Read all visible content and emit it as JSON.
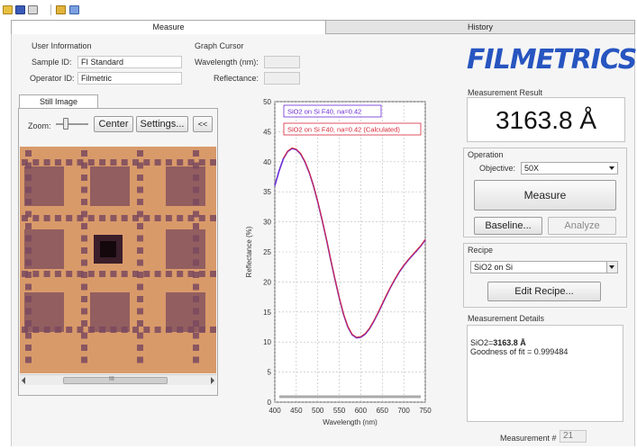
{
  "toolbar": {
    "icons": [
      "open-icon",
      "save-icon",
      "print-icon",
      "settings-icon",
      "help-icon"
    ]
  },
  "tabs": {
    "measure": "Measure",
    "history": "History"
  },
  "user_info": {
    "title": "User Information",
    "sample_label": "Sample ID:",
    "sample_value": "FI Standard",
    "operator_label": "Operator ID:",
    "operator_value": "Filmetric"
  },
  "graph_cursor": {
    "title": "Graph Cursor",
    "wavelength_label": "Wavelength (nm):",
    "wavelength_value": "",
    "reflectance_label": "Reflectance:",
    "reflectance_value": ""
  },
  "still_image": {
    "tab_label": "Still Image",
    "zoom_label": "Zoom:",
    "zoom_level": 0.25,
    "center_label": "Center",
    "settings_label": "Settings...",
    "collapse_label": "<<",
    "scroll_label": "III"
  },
  "brand": {
    "logo_text": "FILMETRICS"
  },
  "measurement_result": {
    "title": "Measurement Result",
    "value": "3163.8 Å"
  },
  "operation": {
    "title": "Operation",
    "objective_label": "Objective:",
    "objective_value": "50X",
    "measure_label": "Measure",
    "baseline_label": "Baseline...",
    "analyze_label": "Analyze"
  },
  "recipe": {
    "title": "Recipe",
    "value": "SiO2 on Si",
    "edit_label": "Edit Recipe..."
  },
  "details": {
    "title": "Measurement Details",
    "line1_prefix": "SiO2=",
    "line1_value": "3163.8 Å",
    "line2": "Goodness of fit = 0.999484",
    "measurement_label": "Measurement #",
    "measurement_number": "21"
  },
  "colors": {
    "logo": "#2755c0",
    "measured_series": "#6a2bd6",
    "calculated_series": "#d8283a",
    "specimen_background": "#d99a6a",
    "specimen_pad": "#7a4a5e"
  },
  "chart_data": {
    "type": "line",
    "title": "",
    "xlabel": "Wavelength (nm)",
    "ylabel": "Reflectance (%)",
    "xlim": [
      400,
      750
    ],
    "ylim": [
      0,
      50
    ],
    "x_ticks": [
      "400",
      "450",
      "500",
      "550",
      "600",
      "650",
      "700",
      "750"
    ],
    "y_ticks": [
      "0",
      "5",
      "10",
      "15",
      "20",
      "25",
      "30",
      "35",
      "40",
      "45",
      "50"
    ],
    "grid": true,
    "legend_position": "top",
    "series": [
      {
        "name": "SiO2 on Si F40, na=0.42",
        "color": "#6a2bd6",
        "x": [
          400,
          410,
          420,
          430,
          440,
          450,
          460,
          470,
          480,
          490,
          500,
          510,
          520,
          530,
          540,
          550,
          560,
          570,
          580,
          590,
          600,
          610,
          620,
          630,
          640,
          650,
          660,
          670,
          680,
          690,
          700,
          710,
          720,
          730,
          740,
          750
        ],
        "y": [
          36.0,
          38.5,
          40.5,
          41.7,
          42.2,
          42.0,
          41.3,
          40.0,
          38.2,
          36.0,
          33.3,
          30.3,
          27.1,
          23.7,
          20.4,
          17.3,
          14.6,
          12.5,
          11.2,
          10.7,
          10.8,
          11.3,
          12.2,
          13.4,
          14.8,
          16.3,
          17.8,
          19.2,
          20.5,
          21.7,
          22.7,
          23.6,
          24.4,
          25.2,
          26.0,
          27.0
        ]
      },
      {
        "name": "SiO2 on Si F40, na=0.42 (Calculated)",
        "color": "#d8283a",
        "x": [
          420,
          430,
          440,
          450,
          460,
          470,
          480,
          490,
          500,
          510,
          520,
          530,
          540,
          550,
          560,
          570,
          580,
          590,
          600,
          610,
          620,
          630,
          640,
          650,
          660,
          670,
          680,
          690,
          700,
          710,
          720,
          730,
          740,
          750
        ],
        "y": [
          40.6,
          41.8,
          42.3,
          42.1,
          41.4,
          40.1,
          38.3,
          36.1,
          33.4,
          30.4,
          27.2,
          23.8,
          20.5,
          17.4,
          14.7,
          12.6,
          11.3,
          10.8,
          10.9,
          11.4,
          12.3,
          13.5,
          14.9,
          16.4,
          17.9,
          19.3,
          20.6,
          21.8,
          22.8,
          23.7,
          24.5,
          25.3,
          26.1,
          27.1
        ]
      }
    ]
  }
}
